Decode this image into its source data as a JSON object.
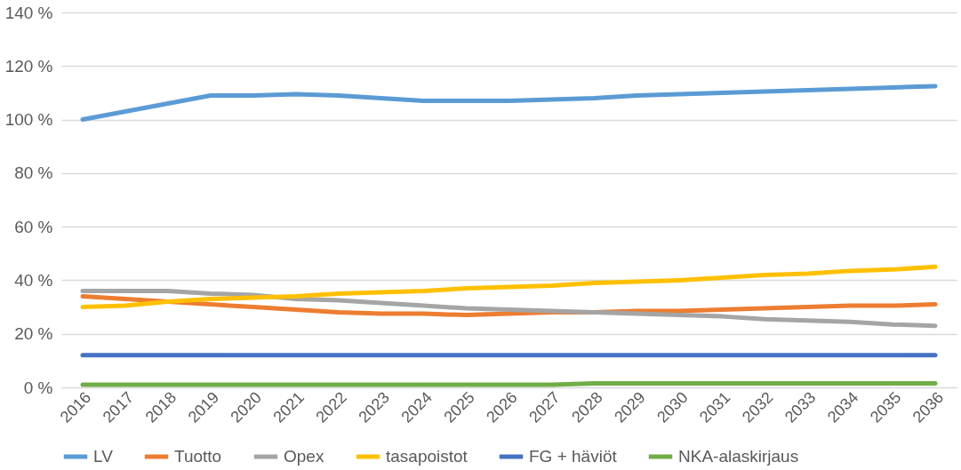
{
  "chart_data": {
    "type": "line",
    "categories": [
      "2016",
      "2017",
      "2018",
      "2019",
      "2020",
      "2021",
      "2022",
      "2023",
      "2024",
      "2025",
      "2026",
      "2027",
      "2028",
      "2029",
      "2030",
      "2031",
      "2032",
      "2033",
      "2034",
      "2035",
      "2036"
    ],
    "series": [
      {
        "name": "LV",
        "color": "#5b9bd5",
        "values": [
          100,
          103,
          106,
          109,
          109,
          109.5,
          109,
          108,
          107,
          107,
          107,
          107.5,
          108,
          109,
          109.5,
          110,
          110.5,
          111,
          111.5,
          112,
          112.5
        ]
      },
      {
        "name": "Tuotto",
        "color": "#ed7d31",
        "values": [
          34,
          33,
          32,
          31,
          30,
          29,
          28,
          27.5,
          27.5,
          27,
          27.5,
          28,
          28,
          28.5,
          28.5,
          29,
          29.5,
          30,
          30.5,
          30.5,
          31
        ]
      },
      {
        "name": "Opex",
        "color": "#a5a5a5",
        "values": [
          36,
          36,
          36,
          35,
          34.5,
          33,
          32.5,
          31.5,
          30.5,
          29.5,
          29,
          28.5,
          28,
          27.5,
          27,
          26.5,
          25.5,
          25,
          24.5,
          23.5,
          23
        ]
      },
      {
        "name": "tasapoistot",
        "color": "#ffc000",
        "values": [
          30,
          30.5,
          32,
          33,
          33.5,
          34,
          35,
          35.5,
          36,
          37,
          37.5,
          38,
          39,
          39.5,
          40,
          41,
          42,
          42.5,
          43.5,
          44,
          45
        ]
      },
      {
        "name": "FG + häviöt",
        "color": "#4472c4",
        "values": [
          12,
          12,
          12,
          12,
          12,
          12,
          12,
          12,
          12,
          12,
          12,
          12,
          12,
          12,
          12,
          12,
          12,
          12,
          12,
          12,
          12
        ]
      },
      {
        "name": "NKA-alaskirjaus",
        "color": "#70ad47",
        "values": [
          1,
          1,
          1,
          1,
          1,
          1,
          1,
          1,
          1,
          1,
          1,
          1,
          1.5,
          1.5,
          1.5,
          1.5,
          1.5,
          1.5,
          1.5,
          1.5,
          1.5
        ]
      }
    ],
    "ylim": [
      0,
      140
    ],
    "yticks": [
      {
        "value": 0,
        "label": "0 %"
      },
      {
        "value": 20,
        "label": "20 %"
      },
      {
        "value": 40,
        "label": "40 %"
      },
      {
        "value": 60,
        "label": "60 %"
      },
      {
        "value": 80,
        "label": "80 %"
      },
      {
        "value": 100,
        "label": "100 %"
      },
      {
        "value": 120,
        "label": "120 %"
      },
      {
        "value": 140,
        "label": "140 %"
      }
    ],
    "grid": "y",
    "legend": "bottom",
    "marker": "none",
    "line_style": "solid"
  }
}
